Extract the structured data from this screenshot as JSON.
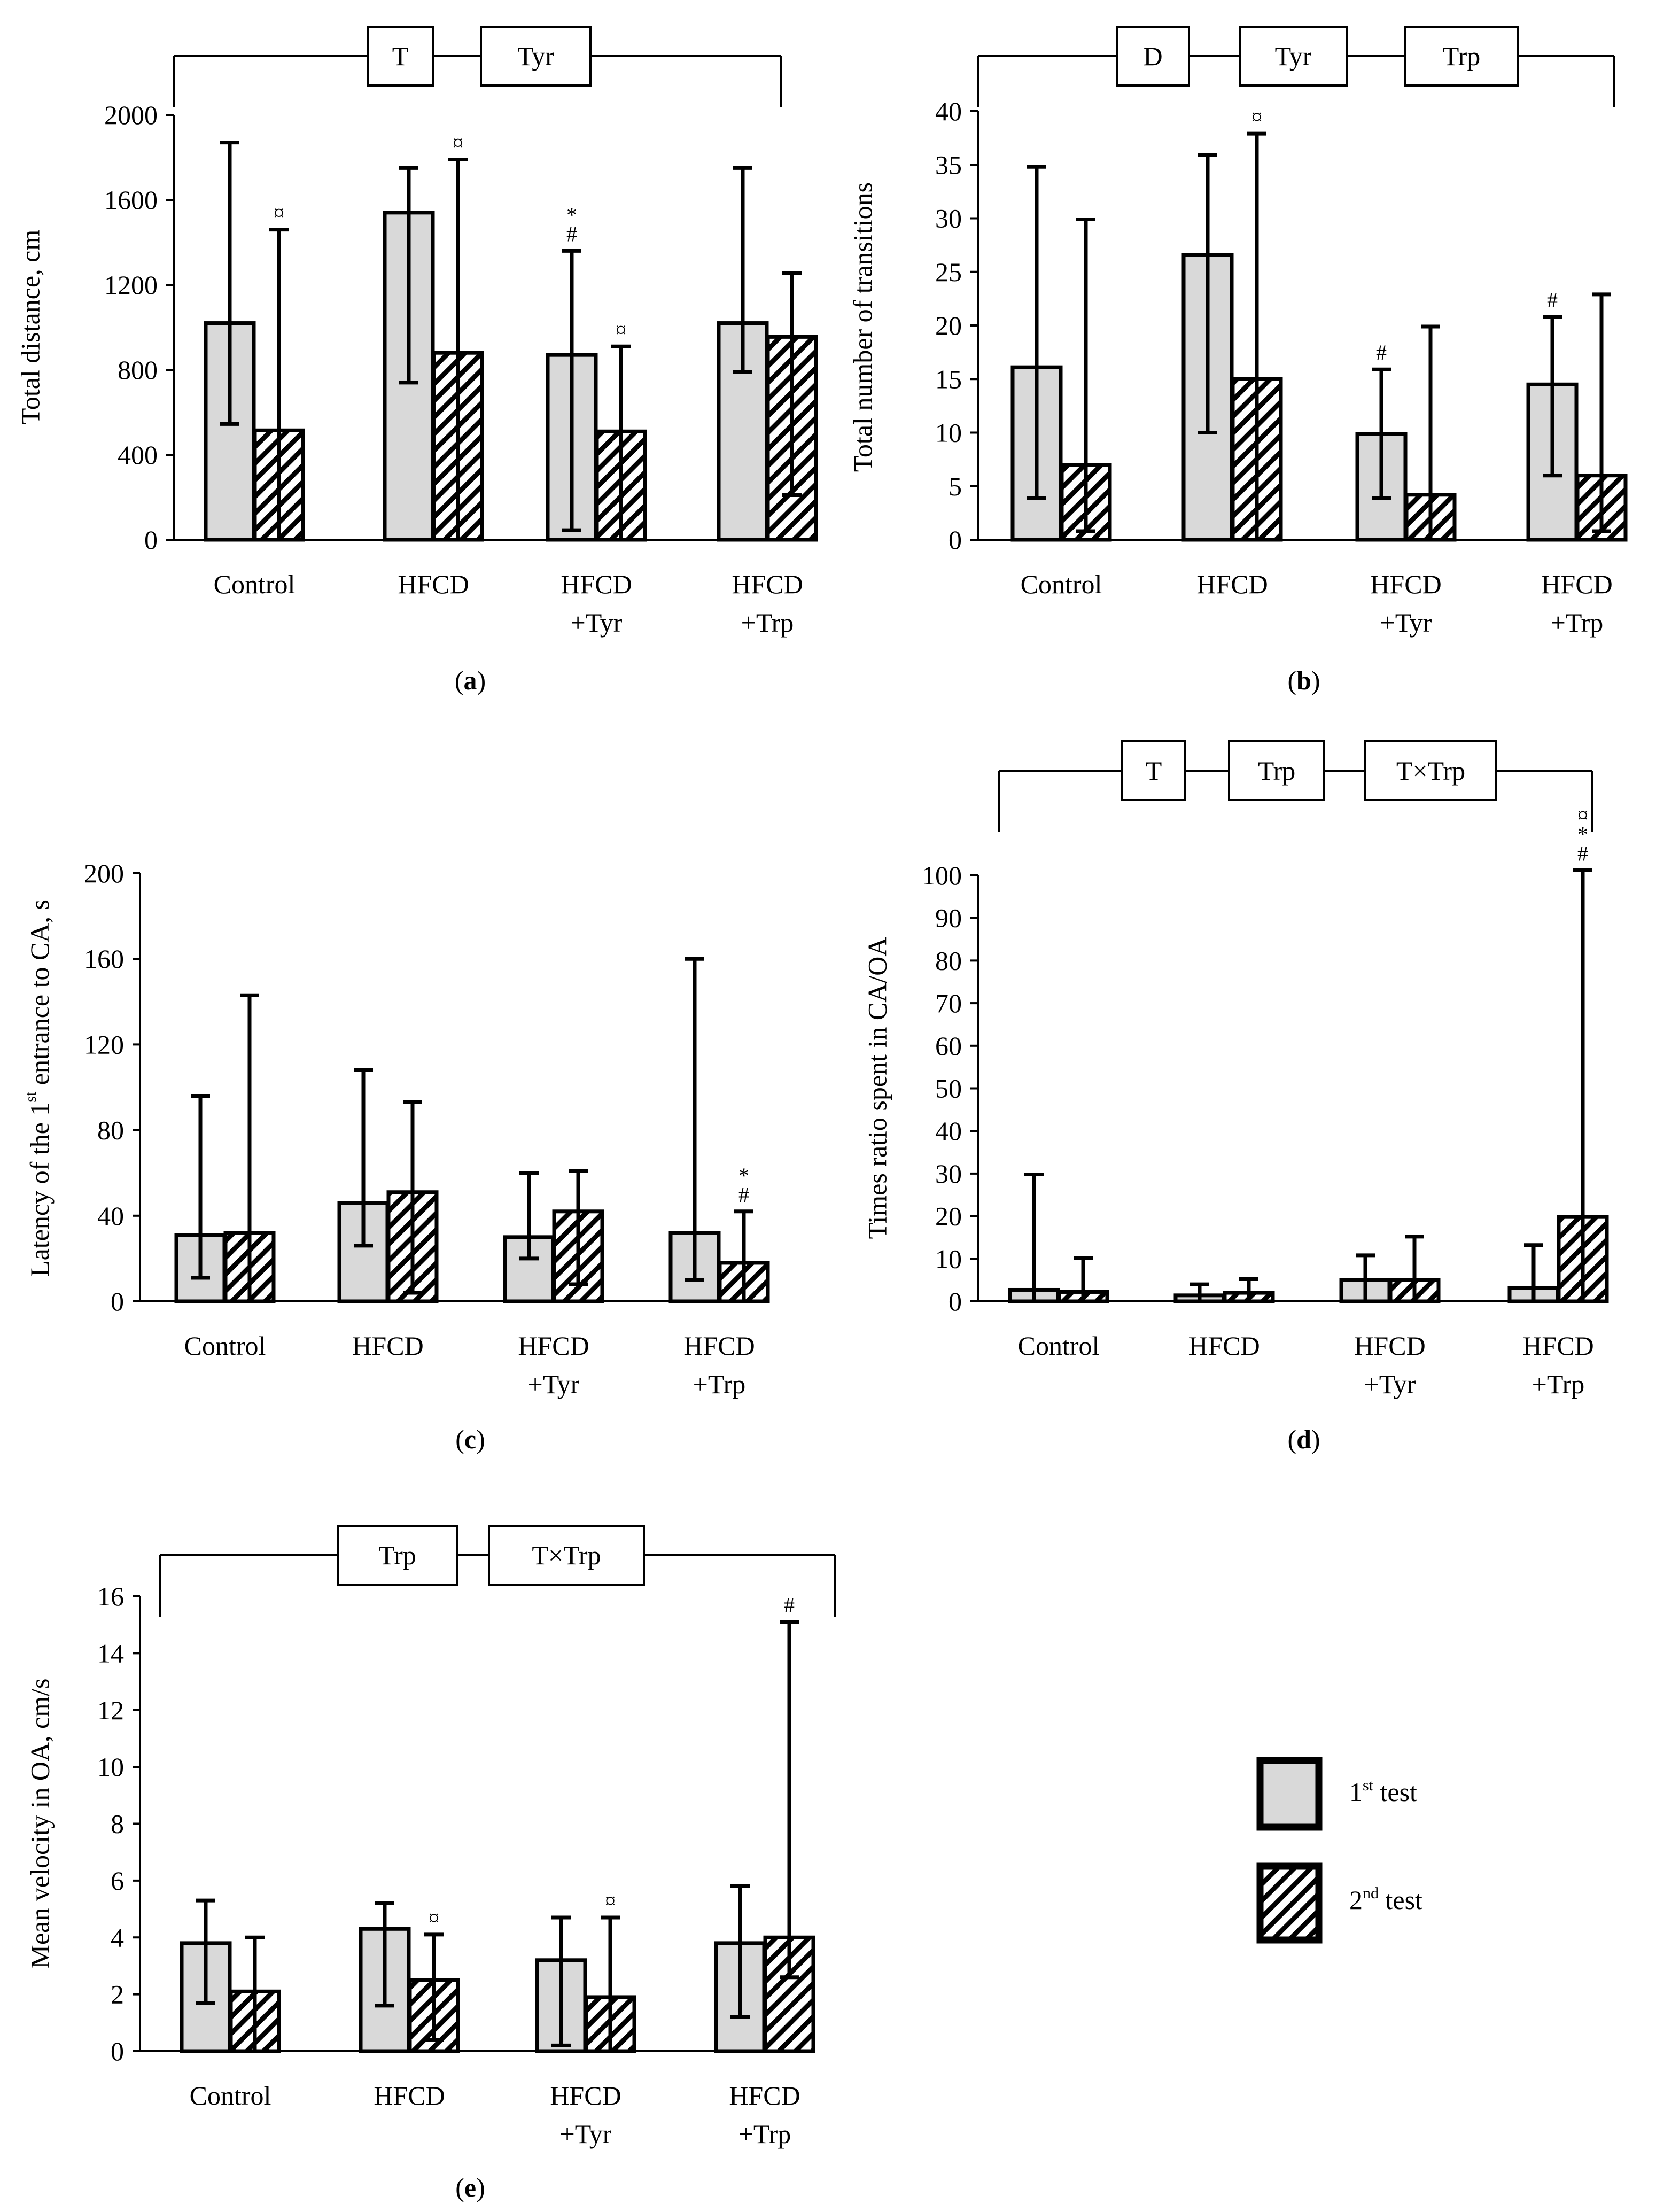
{
  "colors": {
    "bar1": "#d9d9d9",
    "stroke": "#000000",
    "background": "#ffffff"
  },
  "legend": {
    "first": {
      "pre": "1",
      "sup": "st",
      "post": " test"
    },
    "second": {
      "pre": "2",
      "sup": "nd",
      "post": " test"
    }
  },
  "chart_data": [
    {
      "id": "a",
      "type": "bar",
      "panel_label": {
        "open": "(",
        "letter": "a",
        "close": ")"
      },
      "ylabel": "Total distance, cm",
      "ylim": [
        0,
        2000
      ],
      "yticks": [
        "0",
        "400",
        "800",
        "1200",
        "1600",
        "2000"
      ],
      "categories": [
        [
          "Control"
        ],
        [
          "HFCD"
        ],
        [
          "HFCD",
          "+Tyr"
        ],
        [
          "HFCD",
          "+Trp"
        ]
      ],
      "series": [
        {
          "name": "1st test",
          "values": [
            1020,
            1540,
            870,
            1020
          ],
          "err_low": [
            545,
            740,
            45,
            790
          ],
          "err_high": [
            1870,
            1750,
            1360,
            1750
          ]
        },
        {
          "name": "2nd test",
          "values": [
            515,
            880,
            510,
            955
          ],
          "err_low": [
            0,
            0,
            0,
            210
          ],
          "err_high": [
            1460,
            1790,
            910,
            1255
          ]
        }
      ],
      "annotations": [
        {
          "series": 1,
          "cat": 0,
          "lines": [
            "¤"
          ]
        },
        {
          "series": 1,
          "cat": 1,
          "lines": [
            "¤"
          ]
        },
        {
          "series": 0,
          "cat": 2,
          "lines": [
            "*",
            "#"
          ]
        },
        {
          "series": 1,
          "cat": 2,
          "lines": [
            "¤"
          ]
        }
      ],
      "factors": [
        "T",
        "Tyr"
      ]
    },
    {
      "id": "b",
      "type": "bar",
      "panel_label": {
        "open": "(",
        "letter": "b",
        "close": ")"
      },
      "ylabel": "Total number of transitions",
      "ylim": [
        0,
        40
      ],
      "yticks": [
        "0",
        "5",
        "10",
        "15",
        "20",
        "25",
        "30",
        "35",
        "40"
      ],
      "categories": [
        [
          "Control"
        ],
        [
          "HFCD"
        ],
        [
          "HFCD",
          "+Tyr"
        ],
        [
          "HFCD",
          "+Trp"
        ]
      ],
      "series": [
        {
          "name": "1st test",
          "values": [
            16.1,
            26.6,
            9.9,
            14.5
          ],
          "err_low": [
            3.9,
            10,
            3.9,
            6
          ],
          "err_high": [
            34.8,
            35.9,
            15.9,
            20.8
          ]
        },
        {
          "name": "2nd test",
          "values": [
            7.0,
            15.0,
            4.2,
            6.0
          ],
          "err_low": [
            0.8,
            0,
            0,
            0.8
          ],
          "err_high": [
            29.9,
            37.9,
            19.9,
            22.9
          ]
        }
      ],
      "annotations": [
        {
          "series": 1,
          "cat": 1,
          "lines": [
            "¤"
          ]
        },
        {
          "series": 0,
          "cat": 2,
          "lines": [
            "#"
          ]
        },
        {
          "series": 0,
          "cat": 3,
          "lines": [
            "#"
          ]
        }
      ],
      "factors": [
        "D",
        "Tyr",
        "Trp"
      ]
    },
    {
      "id": "c",
      "type": "bar",
      "panel_label": {
        "open": "(",
        "letter": "c",
        "close": ")"
      },
      "ylabel": {
        "pre": "Latency of the  1",
        "sup": "st",
        "post": " entrance to CA, s"
      },
      "ylim": [
        0,
        200
      ],
      "yticks": [
        "0",
        "40",
        "80",
        "120",
        "160",
        "200"
      ],
      "categories": [
        [
          "Control"
        ],
        [
          "HFCD"
        ],
        [
          "HFCD",
          "+Tyr"
        ],
        [
          "HFCD",
          "+Trp"
        ]
      ],
      "series": [
        {
          "name": "1st test",
          "values": [
            31,
            46,
            30,
            32
          ],
          "err_low": [
            11,
            26,
            20,
            10
          ],
          "err_high": [
            96,
            108,
            60,
            160
          ]
        },
        {
          "name": "2nd test",
          "values": [
            32,
            51,
            42,
            18
          ],
          "err_low": [
            0,
            4,
            8,
            0
          ],
          "err_high": [
            143,
            93,
            61,
            42
          ]
        }
      ],
      "annotations": [
        {
          "series": 1,
          "cat": 3,
          "lines": [
            "*",
            "#"
          ]
        }
      ],
      "factors": []
    },
    {
      "id": "d",
      "type": "bar",
      "panel_label": {
        "open": "(",
        "letter": "d",
        "close": ")"
      },
      "ylabel": "Times ratio spent in CA/OA",
      "ylim": [
        0,
        100
      ],
      "yticks": [
        "0",
        "10",
        "20",
        "30",
        "40",
        "50",
        "60",
        "70",
        "80",
        "90",
        "100"
      ],
      "categories": [
        [
          "Control"
        ],
        [
          "HFCD"
        ],
        [
          "HFCD",
          "+Tyr"
        ],
        [
          "HFCD",
          "+Trp"
        ]
      ],
      "series": [
        {
          "name": "1st test",
          "values": [
            2.7,
            1.4,
            5.0,
            3.2
          ],
          "err_low": [
            0,
            0,
            0,
            0
          ],
          "err_high": [
            29.8,
            4.0,
            10.8,
            13.2
          ]
        },
        {
          "name": "2nd test",
          "values": [
            2.2,
            2.0,
            5.0,
            19.8
          ],
          "err_low": [
            0,
            0,
            0,
            0
          ],
          "err_high": [
            10.2,
            5.2,
            15.2,
            101.2
          ]
        }
      ],
      "annotations": [
        {
          "series": 1,
          "cat": 3,
          "lines": [
            "¤",
            "*",
            "#"
          ]
        }
      ],
      "factors": [
        "T",
        "Trp",
        "T×Trp"
      ]
    },
    {
      "id": "e",
      "type": "bar",
      "panel_label": {
        "open": "(",
        "letter": "e",
        "close": ")"
      },
      "ylabel": "Mean velocity in OA, cm/s",
      "ylim": [
        0,
        16
      ],
      "yticks": [
        "0",
        "2",
        "4",
        "6",
        "8",
        "10",
        "12",
        "14",
        "16"
      ],
      "categories": [
        [
          "Control"
        ],
        [
          "HFCD"
        ],
        [
          "HFCD",
          "+Tyr"
        ],
        [
          "HFCD",
          "+Trp"
        ]
      ],
      "series": [
        {
          "name": "1st test",
          "values": [
            3.8,
            4.3,
            3.2,
            3.8
          ],
          "err_low": [
            1.7,
            1.6,
            0.2,
            1.2
          ],
          "err_high": [
            5.3,
            5.2,
            4.7,
            5.8
          ]
        },
        {
          "name": "2nd test",
          "values": [
            2.1,
            2.5,
            1.9,
            4.0
          ],
          "err_low": [
            0,
            0.4,
            0,
            2.6
          ],
          "err_high": [
            4.0,
            4.1,
            4.7,
            15.1
          ]
        }
      ],
      "annotations": [
        {
          "series": 1,
          "cat": 1,
          "lines": [
            "¤"
          ]
        },
        {
          "series": 1,
          "cat": 2,
          "lines": [
            "¤"
          ]
        },
        {
          "series": 1,
          "cat": 3,
          "lines": [
            "#"
          ]
        }
      ],
      "factors": [
        "Trp",
        "T×Trp"
      ]
    }
  ]
}
